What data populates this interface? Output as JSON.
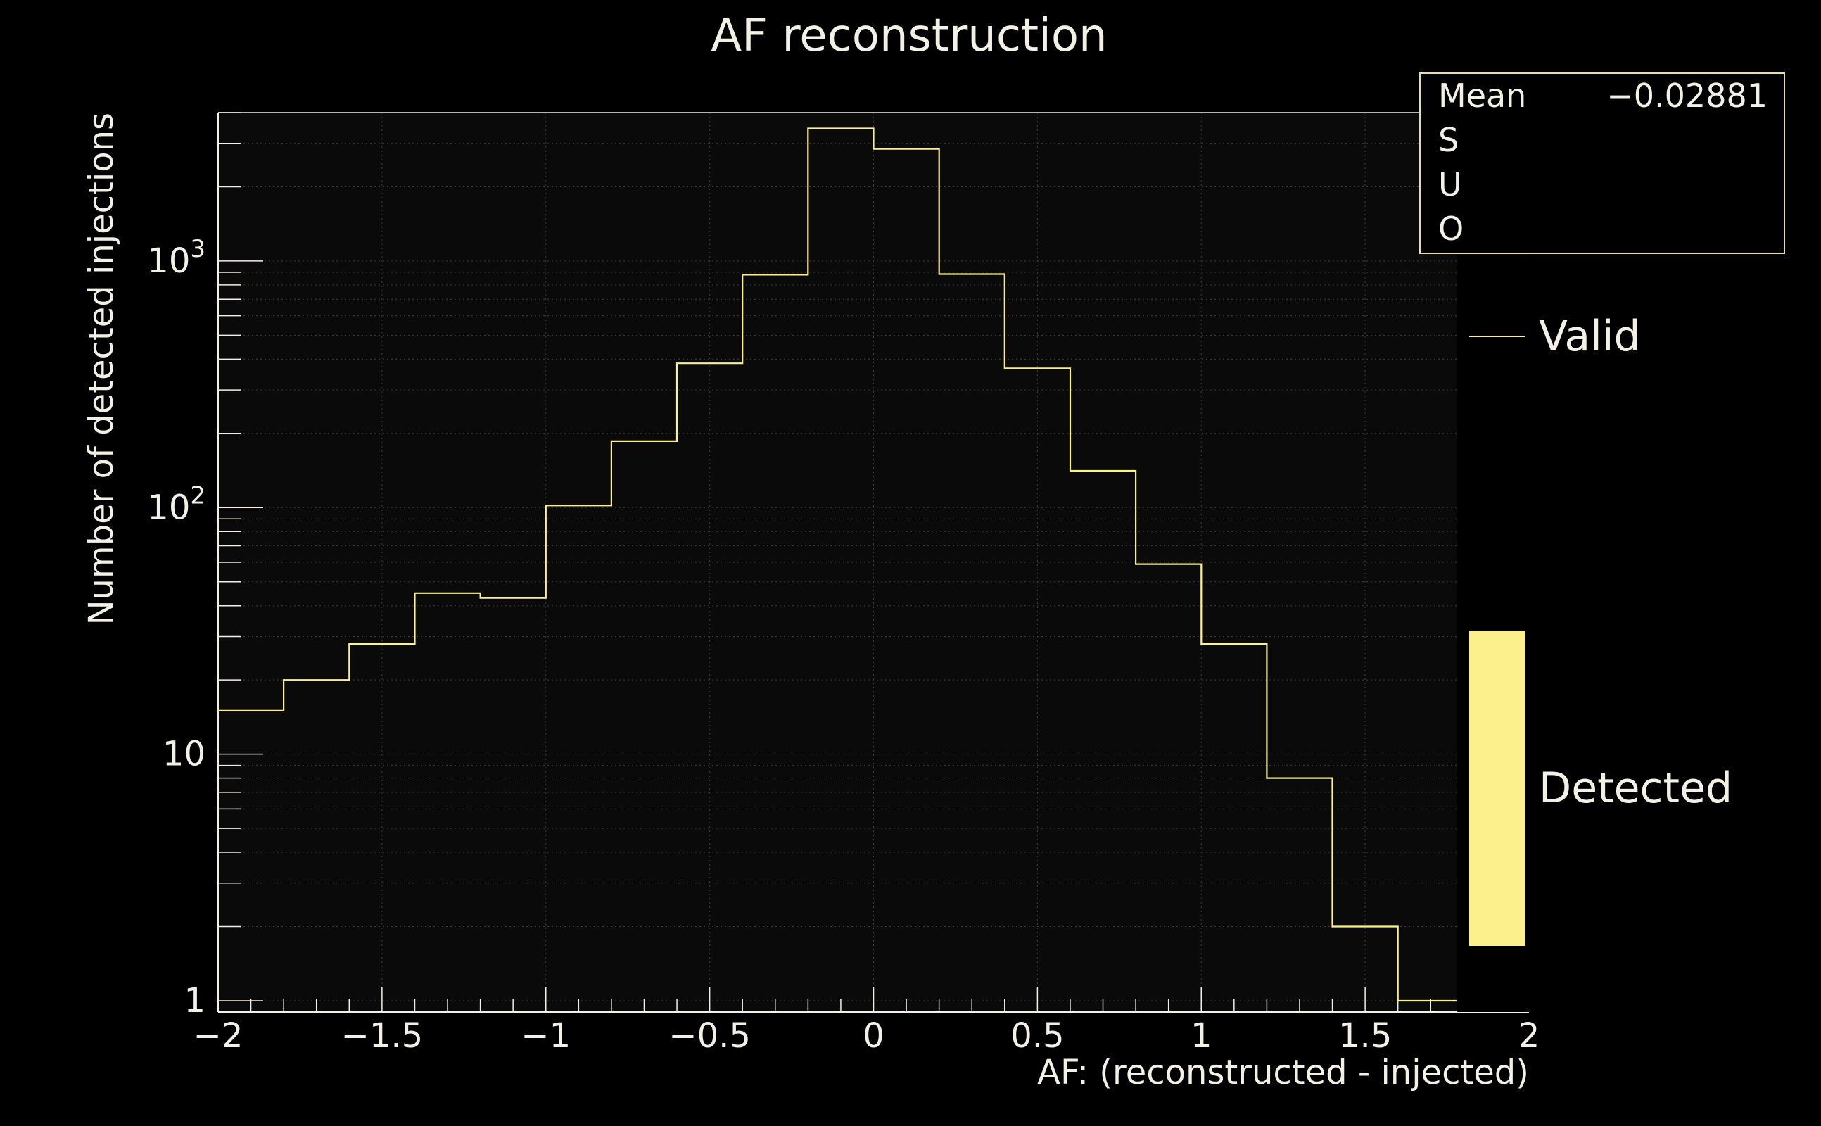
{
  "chart_data": {
    "type": "histogram",
    "title": "AF  reconstruction",
    "xlabel": "AF: (reconstructed - injected)",
    "ylabel": "Number of detected injections",
    "xlim": [
      -2,
      2
    ],
    "ylim": [
      0.9,
      4000
    ],
    "yscale": "log",
    "grid": true,
    "x_ticks": [
      -2,
      -1.5,
      -1,
      -0.5,
      0,
      0.5,
      1,
      1.5,
      2
    ],
    "x_tick_labels": [
      "−2",
      "−1.5",
      "−1",
      "−0.5",
      "0",
      "0.5",
      "1",
      "1.5",
      "2"
    ],
    "y_ticks": [
      1,
      10,
      100,
      1000
    ],
    "y_tick_labels": [
      {
        "base": "1",
        "exp": ""
      },
      {
        "base": "10",
        "exp": ""
      },
      {
        "base": "10",
        "exp": "2"
      },
      {
        "base": "10",
        "exp": "3"
      }
    ],
    "bin_edges": [
      -2,
      -1.8,
      -1.6,
      -1.4,
      -1.2,
      -1,
      -0.8,
      -0.6,
      -0.4,
      -0.2,
      0,
      0.2,
      0.4,
      0.6,
      0.8,
      1,
      1.2,
      1.4,
      1.6,
      1.8
    ],
    "series": [
      {
        "name": "Valid",
        "style": "line",
        "color": "#fbf08c",
        "values": [
          15,
          20,
          28,
          45,
          43,
          102,
          186,
          385,
          880,
          3450,
          2850,
          885,
          367,
          141,
          59,
          28,
          8,
          2,
          1
        ]
      }
    ],
    "legend": {
      "placement": "right",
      "items": [
        {
          "label": "Valid",
          "style": "line",
          "color": "#fbf08c"
        },
        {
          "label": "Detected",
          "style": "fill",
          "color": "#fbf08c"
        }
      ]
    },
    "stats": {
      "rows": [
        {
          "label": "Mean",
          "value": "−0.02881"
        },
        {
          "label": "S",
          "value": ""
        },
        {
          "label": "U",
          "value": ""
        },
        {
          "label": "O",
          "value": ""
        }
      ]
    }
  },
  "colors": {
    "background": "#000000",
    "plot_background": "#0a0a0a",
    "axis": "#f3f0e6",
    "grid": "#3a3a3a",
    "accent": "#fbf08c"
  }
}
